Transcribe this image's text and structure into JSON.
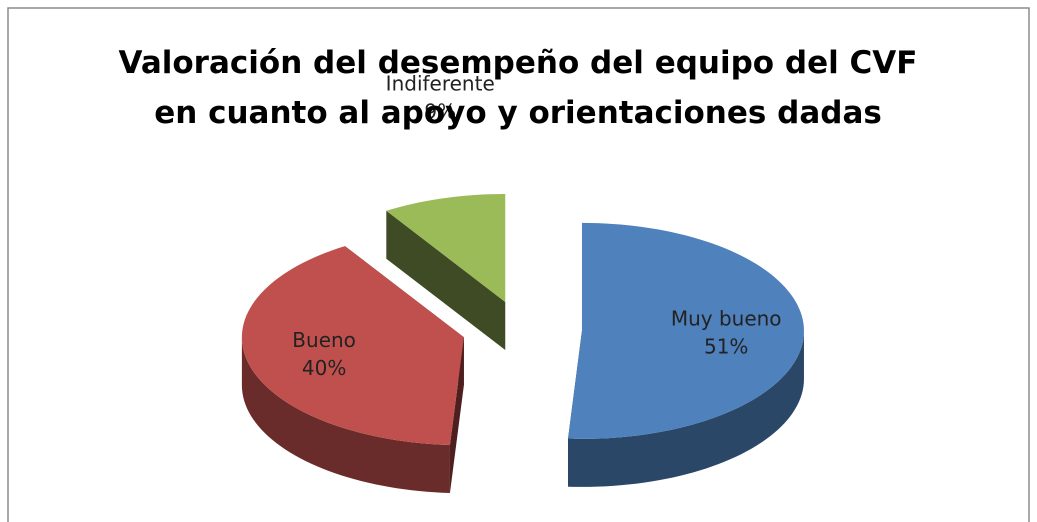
{
  "chart_data": {
    "type": "pie",
    "title": "Valoración del desempeño del equipo del CVF en cuanto al apoyo y orientaciones dadas",
    "categories": [
      "Muy bueno",
      "Bueno",
      "Indiferente"
    ],
    "values": [
      51,
      40,
      9
    ],
    "value_labels": [
      "51%",
      "40%",
      "9%"
    ],
    "colors": [
      "#4f81bd",
      "#c0504d",
      "#9bbb59"
    ]
  }
}
